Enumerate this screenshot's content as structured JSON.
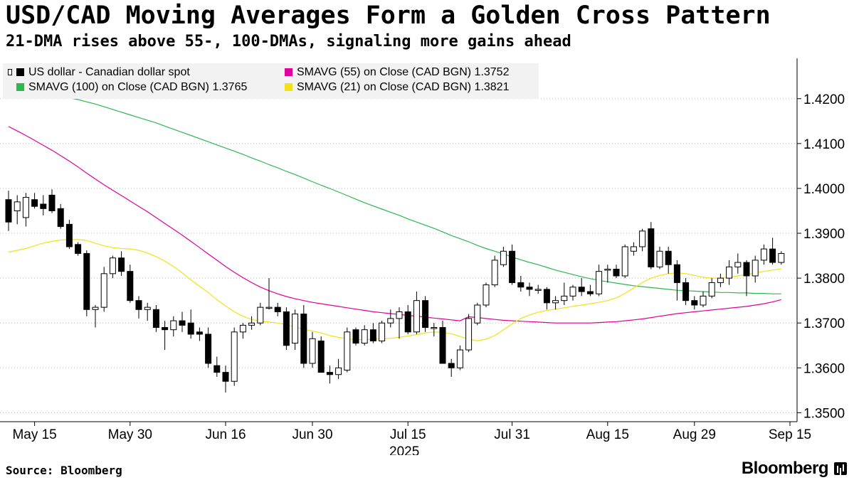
{
  "header": {
    "title": "USD/CAD Moving Averages Form a Golden Cross Pattern",
    "subtitle": "21-DMA rises above 55-, 100-DMAs, signaling more gains ahead"
  },
  "footer": {
    "source": "Source: Bloomberg",
    "brand": "Bloomberg"
  },
  "chart_data": {
    "type": "candlestick",
    "title": "USD/CAD Moving Averages Form a Golden Cross Pattern",
    "subtitle": "21-DMA rises above 55-, 100-DMAs, signaling more gains ahead",
    "ylim": [
      1.348,
      1.429
    ],
    "y_ticks": [
      "1.3500",
      "1.3600",
      "1.3700",
      "1.3800",
      "1.3900",
      "1.4000",
      "1.4100",
      "1.4200"
    ],
    "y_tick_values": [
      1.35,
      1.36,
      1.37,
      1.38,
      1.39,
      1.4,
      1.41,
      1.42
    ],
    "x_ticks": [
      "May 15",
      "May 30",
      "Jun 16",
      "Jun 30",
      "Jul 15",
      "Jul 31",
      "Aug 15",
      "Aug 29",
      "Sep 15"
    ],
    "x_tick_index": [
      3,
      14,
      25,
      35,
      46,
      58,
      69,
      79,
      90
    ],
    "x_year_label": "2025",
    "grid": "horizontal",
    "legend_placement": "top-left",
    "legend": [
      {
        "label": "US dollar - Canadian dollar spot",
        "color": "#000000"
      },
      {
        "label": "SMAVG (55)  on Close (CAD BGN) 1.3752",
        "color": "#e0009a"
      },
      {
        "label": "SMAVG (100)  on Close (CAD BGN) 1.3765",
        "color": "#2db84d"
      },
      {
        "label": "SMAVG (21)  on Close (CAD BGN) 1.3821",
        "color": "#f4e01a"
      }
    ],
    "colors": {
      "up": "#ffffff",
      "down": "#000000",
      "sma55": "#e0009a",
      "sma100": "#2db84d",
      "sma21": "#f4e01a"
    },
    "candles": [
      [
        1.3975,
        1.3995,
        1.3905,
        1.3925
      ],
      [
        1.395,
        1.3985,
        1.392,
        1.397
      ],
      [
        1.3935,
        1.399,
        1.3915,
        1.398
      ],
      [
        1.3975,
        1.399,
        1.3955,
        1.396
      ],
      [
        1.3965,
        1.3985,
        1.394,
        1.3955
      ],
      [
        1.3985,
        1.3998,
        1.3945,
        1.395
      ],
      [
        1.3955,
        1.3965,
        1.391,
        1.3915
      ],
      [
        1.392,
        1.393,
        1.3865,
        1.387
      ],
      [
        1.3875,
        1.388,
        1.385,
        1.3855
      ],
      [
        1.3855,
        1.3862,
        1.3715,
        1.373
      ],
      [
        1.373,
        1.374,
        1.369,
        1.3735
      ],
      [
        1.3735,
        1.3825,
        1.3725,
        1.381
      ],
      [
        1.381,
        1.385,
        1.38,
        1.3845
      ],
      [
        1.3845,
        1.386,
        1.3805,
        1.3815
      ],
      [
        1.3815,
        1.383,
        1.3745,
        1.375
      ],
      [
        1.375,
        1.376,
        1.371,
        1.373
      ],
      [
        1.373,
        1.3745,
        1.3705,
        1.3735
      ],
      [
        1.373,
        1.374,
        1.368,
        1.369
      ],
      [
        1.369,
        1.3705,
        1.364,
        1.3685
      ],
      [
        1.3685,
        1.3715,
        1.367,
        1.3705
      ],
      [
        1.3705,
        1.3725,
        1.368,
        1.3695
      ],
      [
        1.37,
        1.373,
        1.3665,
        1.3675
      ],
      [
        1.368,
        1.369,
        1.366,
        1.3675
      ],
      [
        1.3675,
        1.369,
        1.36,
        1.361
      ],
      [
        1.3605,
        1.3625,
        1.358,
        1.359
      ],
      [
        1.359,
        1.3605,
        1.3545,
        1.357
      ],
      [
        1.357,
        1.369,
        1.356,
        1.368
      ],
      [
        1.368,
        1.37,
        1.3665,
        1.3695
      ],
      [
        1.3695,
        1.3715,
        1.3685,
        1.37
      ],
      [
        1.37,
        1.3745,
        1.3695,
        1.3735
      ],
      [
        1.3735,
        1.38,
        1.373,
        1.3735
      ],
      [
        1.3735,
        1.3745,
        1.3715,
        1.3725
      ],
      [
        1.3725,
        1.3735,
        1.364,
        1.365
      ],
      [
        1.3655,
        1.373,
        1.364,
        1.372
      ],
      [
        1.372,
        1.374,
        1.36,
        1.361
      ],
      [
        1.361,
        1.368,
        1.36,
        1.3665
      ],
      [
        1.366,
        1.367,
        1.359,
        1.359
      ],
      [
        1.359,
        1.3605,
        1.3565,
        1.3585
      ],
      [
        1.3585,
        1.362,
        1.3575,
        1.36
      ],
      [
        1.3595,
        1.369,
        1.359,
        1.368
      ],
      [
        1.3685,
        1.369,
        1.365,
        1.3655
      ],
      [
        1.3655,
        1.3695,
        1.365,
        1.3685
      ],
      [
        1.3685,
        1.37,
        1.3655,
        1.366
      ],
      [
        1.366,
        1.3705,
        1.3655,
        1.37
      ],
      [
        1.37,
        1.373,
        1.369,
        1.371
      ],
      [
        1.371,
        1.3735,
        1.3665,
        1.3725
      ],
      [
        1.3725,
        1.374,
        1.3675,
        1.368
      ],
      [
        1.368,
        1.377,
        1.3675,
        1.375
      ],
      [
        1.375,
        1.376,
        1.368,
        1.369
      ],
      [
        1.369,
        1.37,
        1.367,
        1.369
      ],
      [
        1.369,
        1.3705,
        1.361,
        1.361
      ],
      [
        1.361,
        1.362,
        1.358,
        1.36
      ],
      [
        1.36,
        1.365,
        1.3595,
        1.364
      ],
      [
        1.364,
        1.372,
        1.3635,
        1.371
      ],
      [
        1.37,
        1.3745,
        1.3695,
        1.374
      ],
      [
        1.374,
        1.379,
        1.3735,
        1.3785
      ],
      [
        1.3785,
        1.385,
        1.378,
        1.384
      ],
      [
        1.383,
        1.387,
        1.3825,
        1.386
      ],
      [
        1.386,
        1.3875,
        1.3785,
        1.379
      ],
      [
        1.379,
        1.3805,
        1.377,
        1.378
      ],
      [
        1.378,
        1.379,
        1.376,
        1.3775
      ],
      [
        1.3775,
        1.3785,
        1.3765,
        1.3775
      ],
      [
        1.3775,
        1.378,
        1.373,
        1.3745
      ],
      [
        1.3745,
        1.376,
        1.373,
        1.375
      ],
      [
        1.375,
        1.379,
        1.374,
        1.376
      ],
      [
        1.376,
        1.3785,
        1.375,
        1.378
      ],
      [
        1.378,
        1.38,
        1.376,
        1.377
      ],
      [
        1.377,
        1.3785,
        1.376,
        1.3765
      ],
      [
        1.3765,
        1.383,
        1.376,
        1.3815
      ],
      [
        1.382,
        1.383,
        1.379,
        1.382
      ],
      [
        1.382,
        1.383,
        1.38,
        1.3805
      ],
      [
        1.3805,
        1.3875,
        1.38,
        1.387
      ],
      [
        1.386,
        1.388,
        1.385,
        1.387
      ],
      [
        1.387,
        1.391,
        1.386,
        1.3905
      ],
      [
        1.391,
        1.3925,
        1.382,
        1.3825
      ],
      [
        1.3825,
        1.387,
        1.382,
        1.386
      ],
      [
        1.386,
        1.387,
        1.381,
        1.383
      ],
      [
        1.383,
        1.384,
        1.375,
        1.379
      ],
      [
        1.379,
        1.38,
        1.374,
        1.375
      ],
      [
        1.375,
        1.376,
        1.373,
        1.374
      ],
      [
        1.374,
        1.377,
        1.3735,
        1.376
      ],
      [
        1.376,
        1.38,
        1.3755,
        1.379
      ],
      [
        1.379,
        1.381,
        1.378,
        1.38
      ],
      [
        1.38,
        1.384,
        1.3785,
        1.3825
      ],
      [
        1.3825,
        1.3855,
        1.381,
        1.3835
      ],
      [
        1.3835,
        1.384,
        1.376,
        1.3805
      ],
      [
        1.3805,
        1.385,
        1.379,
        1.384
      ],
      [
        1.384,
        1.3875,
        1.383,
        1.3865
      ],
      [
        1.3865,
        1.389,
        1.383,
        1.3835
      ],
      [
        1.3835,
        1.386,
        1.383,
        1.3855
      ]
    ],
    "sma100": [
      1.4225,
      1.4222,
      1.4219,
      1.4216,
      1.4213,
      1.421,
      1.4206,
      1.4202,
      1.4198,
      1.4193,
      1.4188,
      1.4182,
      1.4176,
      1.417,
      1.4164,
      1.4158,
      1.4152,
      1.4146,
      1.4139,
      1.4132,
      1.4125,
      1.4118,
      1.4111,
      1.4104,
      1.4097,
      1.409,
      1.4083,
      1.4076,
      1.4068,
      1.4061,
      1.4053,
      1.4046,
      1.4038,
      1.4031,
      1.4023,
      1.4015,
      1.4007,
      1.4,
      1.3992,
      1.3984,
      1.3976,
      1.3968,
      1.3961,
      1.3954,
      1.3947,
      1.394,
      1.3932,
      1.3925,
      1.3918,
      1.3911,
      1.3903,
      1.3895,
      1.3888,
      1.3881,
      1.3873,
      1.3866,
      1.386,
      1.3854,
      1.3847,
      1.3841,
      1.3835,
      1.383,
      1.3824,
      1.3818,
      1.3813,
      1.3808,
      1.3803,
      1.3799,
      1.3795,
      1.3792,
      1.3789,
      1.3786,
      1.3783,
      1.3781,
      1.3779,
      1.3777,
      1.3775,
      1.3773,
      1.3772,
      1.3771,
      1.377,
      1.3769,
      1.3768,
      1.3768,
      1.3767,
      1.3767,
      1.3766,
      1.3766,
      1.3765,
      1.3765
    ],
    "sma55": [
      1.4138,
      1.4128,
      1.4118,
      1.4107,
      1.4096,
      1.4085,
      1.4073,
      1.4061,
      1.4048,
      1.4034,
      1.4021,
      1.4008,
      1.3996,
      1.3984,
      1.3972,
      1.396,
      1.3948,
      1.3935,
      1.3922,
      1.3909,
      1.3896,
      1.3882,
      1.3868,
      1.3854,
      1.384,
      1.3826,
      1.3813,
      1.3801,
      1.379,
      1.378,
      1.3772,
      1.3765,
      1.3759,
      1.3754,
      1.375,
      1.3746,
      1.3743,
      1.374,
      1.3737,
      1.3734,
      1.3731,
      1.3728,
      1.3725,
      1.3723,
      1.3721,
      1.3719,
      1.3717,
      1.3715,
      1.3713,
      1.3711,
      1.3709,
      1.3707,
      1.3705,
      1.3714,
      1.3712,
      1.371,
      1.3708,
      1.3706,
      1.3705,
      1.3704,
      1.3703,
      1.3702,
      1.3701,
      1.37,
      1.37,
      1.37,
      1.37,
      1.37,
      1.3701,
      1.3702,
      1.3703,
      1.3705,
      1.3707,
      1.3709,
      1.3712,
      1.3715,
      1.3718,
      1.3721,
      1.3723,
      1.3725,
      1.3727,
      1.3729,
      1.3731,
      1.3733,
      1.3735,
      1.3737,
      1.374,
      1.3743,
      1.3747,
      1.3752
    ],
    "sma21": [
      1.3858,
      1.3862,
      1.3866,
      1.3872,
      1.3878,
      1.3882,
      1.3885,
      1.3886,
      1.3886,
      1.3884,
      1.3878,
      1.3872,
      1.3868,
      1.3866,
      1.3865,
      1.3862,
      1.3856,
      1.3848,
      1.3838,
      1.3826,
      1.3812,
      1.3796,
      1.3782,
      1.3768,
      1.3752,
      1.3738,
      1.3725,
      1.3715,
      1.3708,
      1.3704,
      1.3702,
      1.37,
      1.3696,
      1.3691,
      1.3686,
      1.3682,
      1.3678,
      1.3672,
      1.3668,
      1.3665,
      1.3663,
      1.3663,
      1.3664,
      1.3665,
      1.3666,
      1.3668,
      1.3671,
      1.3674,
      1.3678,
      1.368,
      1.3679,
      1.3676,
      1.367,
      1.3664,
      1.366,
      1.3664,
      1.3672,
      1.3685,
      1.3698,
      1.371,
      1.3718,
      1.3724,
      1.3728,
      1.3731,
      1.3734,
      1.3737,
      1.374,
      1.3743,
      1.3746,
      1.375,
      1.3756,
      1.3766,
      1.3778,
      1.379,
      1.38,
      1.3806,
      1.381,
      1.3812,
      1.381,
      1.3806,
      1.3802,
      1.38,
      1.38,
      1.3802,
      1.3805,
      1.3808,
      1.3812,
      1.3815,
      1.3818,
      1.3821
    ]
  }
}
